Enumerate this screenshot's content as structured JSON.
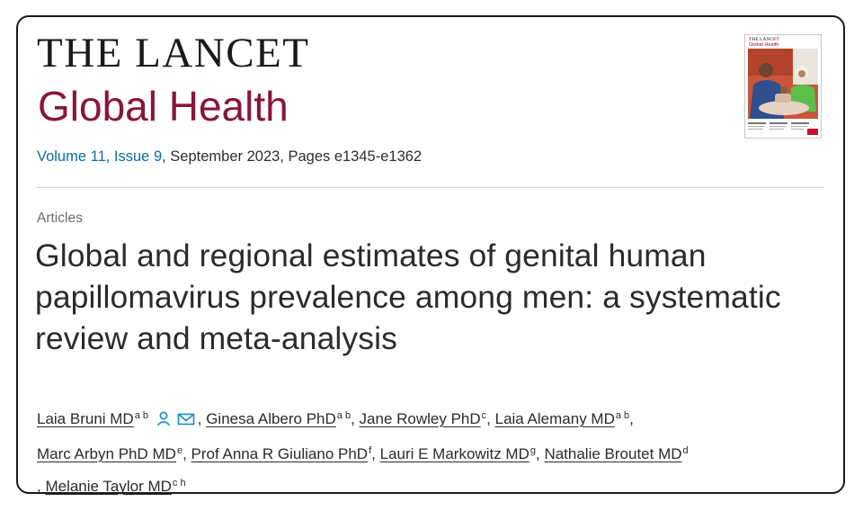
{
  "journal": {
    "line1": "THE LANCET",
    "line2": "Global Health"
  },
  "citation": {
    "volume": "Volume 11, Issue 9",
    "rest": ", September 2023, Pages e1345-e1362"
  },
  "cover": {
    "title_line1": "THE LANCET",
    "title_line2": "Global Health",
    "description": "Journal cover photo"
  },
  "section": "Articles",
  "article_title": "Global and regional estimates of genital human papillomavirus prevalence among men: a systematic review and meta-analysis",
  "authors": [
    {
      "name": "Laia Bruni MD",
      "aff": "a b"
    },
    {
      "name": "Ginesa Albero PhD",
      "aff": "a b"
    },
    {
      "name": "Jane Rowley PhD",
      "aff": "c"
    },
    {
      "name": "Laia Alemany MD",
      "aff": "a b"
    },
    {
      "name": "Marc Arbyn PhD MD",
      "aff": "e"
    },
    {
      "name": "Prof Anna R Giuliano PhD",
      "aff": "f"
    },
    {
      "name": "Lauri E Markowitz MD",
      "aff": "g"
    },
    {
      "name": "Nathalie Broutet MD",
      "aff": "d"
    },
    {
      "name": "Melanie Taylor MD",
      "aff": "c h"
    }
  ],
  "icons": {
    "person": "person-icon",
    "mail": "mail-icon"
  },
  "colors": {
    "brand": "#8a1538",
    "link": "#0b6fa4",
    "icon": "#1e8fc4"
  }
}
